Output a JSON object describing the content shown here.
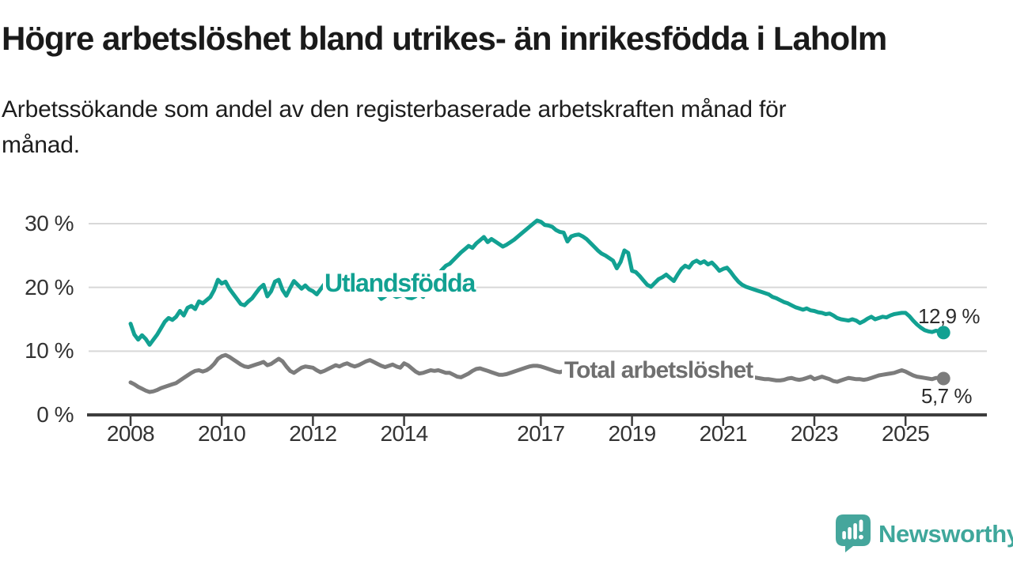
{
  "header": {
    "title": "Högre arbetslöshet bland utrikes- än inrikesfödda i Laholm",
    "subtitle_lines": [
      "Arbetssökande som andel av den registerbaserade arbetskraften månad för",
      "månad."
    ]
  },
  "chart": {
    "y_axis": {
      "ticks": [
        {
          "label": "30 %",
          "value": 30
        },
        {
          "label": "20 %",
          "value": 20
        },
        {
          "label": "10 %",
          "value": 10
        },
        {
          "label": "0 %",
          "value": 0
        }
      ]
    },
    "x_axis": {
      "ticks": [
        {
          "label": "2008",
          "year": 2008
        },
        {
          "label": "2010",
          "year": 2010
        },
        {
          "label": "2012",
          "year": 2012
        },
        {
          "label": "2014",
          "year": 2014
        },
        {
          "label": "2017",
          "year": 2017
        },
        {
          "label": "2019",
          "year": 2019
        },
        {
          "label": "2021",
          "year": 2021
        },
        {
          "label": "2023",
          "year": 2023
        },
        {
          "label": "2025",
          "year": 2025
        }
      ]
    },
    "series_labels": {
      "utlandsfodda": "Utlandsfödda",
      "total": "Total arbetslöshet"
    },
    "end_labels": {
      "utlandsfodda": "12,9 %",
      "total": "5,7 %"
    },
    "colors": {
      "teal_line": "#12a192",
      "gray_line": "#7c7c7c",
      "gridline": "#d8d8d8",
      "axis": "#3d3d3d",
      "logo_teal": "#45a69c"
    }
  },
  "chart_data": {
    "type": "line",
    "title": "Högre arbetslöshet bland utrikes- än inrikesfödda i Laholm",
    "subtitle": "Arbetssökande som andel av den registerbaserade arbetskraften månad för månad.",
    "unit": "%",
    "x_start": "2008-01",
    "x_end": "2025-11",
    "x_interval": "monthly",
    "ylim": [
      0,
      32
    ],
    "xtick_years": [
      2008,
      2010,
      2012,
      2014,
      2017,
      2019,
      2021,
      2023,
      2025
    ],
    "grid": "horizontal",
    "legend_position": "inline-labels",
    "series": [
      {
        "name": "Total arbetslöshet",
        "color": "#7c7c7c",
        "end_value": 5.7,
        "end_value_label": "5,7 %",
        "values": [
          5.1,
          4.8,
          4.4,
          4.1,
          3.8,
          3.6,
          3.7,
          3.9,
          4.2,
          4.4,
          4.6,
          4.8,
          5.0,
          5.4,
          5.8,
          6.2,
          6.6,
          6.9,
          7.0,
          6.8,
          7.0,
          7.4,
          8.0,
          8.8,
          9.2,
          9.4,
          9.1,
          8.7,
          8.3,
          7.9,
          7.6,
          7.5,
          7.7,
          7.9,
          8.1,
          8.3,
          7.8,
          8.0,
          8.4,
          8.8,
          8.4,
          7.6,
          6.9,
          6.6,
          7.0,
          7.4,
          7.6,
          7.5,
          7.4,
          7.0,
          6.7,
          6.9,
          7.2,
          7.5,
          7.8,
          7.6,
          7.9,
          8.1,
          7.8,
          7.6,
          7.8,
          8.1,
          8.4,
          8.6,
          8.3,
          8.0,
          7.7,
          7.5,
          7.7,
          7.9,
          7.6,
          7.4,
          8.1,
          7.8,
          7.3,
          6.8,
          6.5,
          6.6,
          6.8,
          7.0,
          6.9,
          7.0,
          6.8,
          6.6,
          6.6,
          6.3,
          6.0,
          5.9,
          6.2,
          6.5,
          6.9,
          7.2,
          7.3,
          7.1,
          6.9,
          6.7,
          6.5,
          6.3,
          6.3,
          6.4,
          6.6,
          6.8,
          7.0,
          7.2,
          7.4,
          7.6,
          7.7,
          7.7,
          7.6,
          7.4,
          7.2,
          7.0,
          6.8,
          6.7,
          6.9,
          7.1,
          7.0,
          6.9,
          6.8,
          6.7,
          6.6,
          6.5,
          6.4,
          6.3,
          6.2,
          6.1,
          6.0,
          6.1,
          6.2,
          6.3,
          6.4,
          6.3,
          6.2,
          6.1,
          6.0,
          5.9,
          5.8,
          5.9,
          6.0,
          6.1,
          6.2,
          6.1,
          6.0,
          6.1,
          6.3,
          6.5,
          6.8,
          7.1,
          7.3,
          7.4,
          7.5,
          7.4,
          7.3,
          7.2,
          7.0,
          6.9,
          6.8,
          6.7,
          6.6,
          6.5,
          6.4,
          6.2,
          6.1,
          6.0,
          5.9,
          5.8,
          5.7,
          5.6,
          5.6,
          5.5,
          5.4,
          5.4,
          5.5,
          5.7,
          5.8,
          5.6,
          5.5,
          5.6,
          5.8,
          6.0,
          5.6,
          5.8,
          6.0,
          5.8,
          5.6,
          5.3,
          5.2,
          5.4,
          5.6,
          5.8,
          5.7,
          5.6,
          5.6,
          5.5,
          5.6,
          5.8,
          6.0,
          6.2,
          6.3,
          6.4,
          6.5,
          6.6,
          6.8,
          7.0,
          6.8,
          6.5,
          6.2,
          6.0,
          5.9,
          5.8,
          5.7,
          5.6,
          5.8,
          5.8,
          5.7
        ]
      },
      {
        "name": "Utlandsfödda",
        "color": "#12a192",
        "end_value": 12.9,
        "end_value_label": "12,9 %",
        "values": [
          14.3,
          12.6,
          11.8,
          12.5,
          11.9,
          11.0,
          11.8,
          12.6,
          13.6,
          14.6,
          15.2,
          14.9,
          15.4,
          16.3,
          15.6,
          16.8,
          17.1,
          16.6,
          17.8,
          17.5,
          18.0,
          18.5,
          19.6,
          21.2,
          20.6,
          20.9,
          19.8,
          19.0,
          18.2,
          17.4,
          17.2,
          17.8,
          18.3,
          19.1,
          19.9,
          20.4,
          18.6,
          19.4,
          20.9,
          21.2,
          19.6,
          18.7,
          19.9,
          21.0,
          20.4,
          19.8,
          20.3,
          19.7,
          19.4,
          18.9,
          19.7,
          20.5,
          21.1,
          21.7,
          22.0,
          21.3,
          21.7,
          21.0,
          20.5,
          20.2,
          20.9,
          21.6,
          22.1,
          21.4,
          20.2,
          18.9,
          18.2,
          18.6,
          19.1,
          18.8,
          18.5,
          18.7,
          18.9,
          18.4,
          18.3,
          18.6,
          19.1,
          18.5,
          19.4,
          20.3,
          21.2,
          22.1,
          22.8,
          23.4,
          23.7,
          24.3,
          24.9,
          25.5,
          26.0,
          26.5,
          26.2,
          26.9,
          27.4,
          27.9,
          27.1,
          27.6,
          27.2,
          26.8,
          26.4,
          26.7,
          27.1,
          27.5,
          28.0,
          28.5,
          29.0,
          29.5,
          30.0,
          30.5,
          30.3,
          29.8,
          29.7,
          29.5,
          29.0,
          28.7,
          28.6,
          27.2,
          28.0,
          28.2,
          28.3,
          28.0,
          27.6,
          27.0,
          26.4,
          25.8,
          25.3,
          25.0,
          24.6,
          24.2,
          23.0,
          24.0,
          25.8,
          25.4,
          22.6,
          22.4,
          21.8,
          21.1,
          20.4,
          20.1,
          20.7,
          21.3,
          21.6,
          22.0,
          21.5,
          21.0,
          22.0,
          22.9,
          23.4,
          23.1,
          23.9,
          24.2,
          23.8,
          24.1,
          23.6,
          23.9,
          23.3,
          22.6,
          22.9,
          23.1,
          22.4,
          21.6,
          20.9,
          20.4,
          20.1,
          19.9,
          19.7,
          19.5,
          19.3,
          19.1,
          18.9,
          18.5,
          18.3,
          18.0,
          17.7,
          17.5,
          17.2,
          16.9,
          16.7,
          16.5,
          16.7,
          16.4,
          16.3,
          16.1,
          16.0,
          15.8,
          15.9,
          15.6,
          15.2,
          15.0,
          14.9,
          14.8,
          15.0,
          14.8,
          14.4,
          14.7,
          15.1,
          15.4,
          15.0,
          15.2,
          15.4,
          15.3,
          15.6,
          15.8,
          15.9,
          16.0,
          16.0,
          15.5,
          14.8,
          14.2,
          13.7,
          13.3,
          13.1,
          13.0,
          13.2,
          13.1,
          12.9
        ]
      }
    ]
  },
  "branding": {
    "logo_text": "Newsworthy"
  }
}
